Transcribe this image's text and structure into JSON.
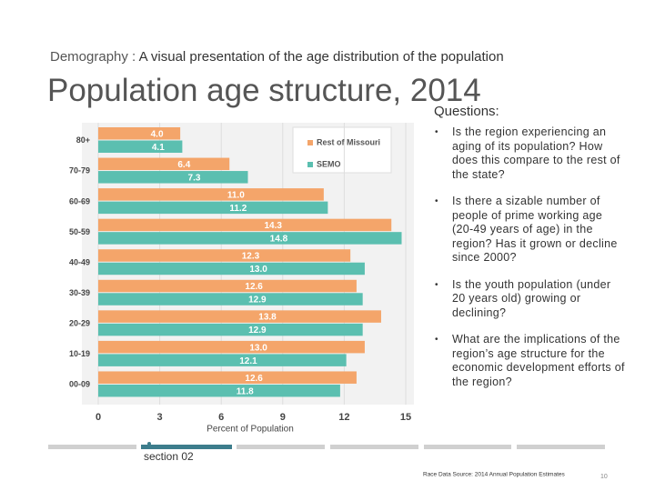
{
  "header": {
    "label": "Demography :",
    "subtitle": "A visual presentation of the age distribution of the population",
    "title": "Population age structure, 2014"
  },
  "questions": {
    "heading": "Questions:",
    "items": [
      "Is the region experiencing an aging of its population? How does this compare to the rest of the state?",
      "Is there a sizable number of people of prime working age (20-49 years of age) in the region? Has it grown or decline since 2000?",
      "Is the youth population (under 20 years old) growing or declining?",
      "What are the implications of the region’s age structure for the economic development efforts of the region?"
    ]
  },
  "footer": {
    "section": "section 02",
    "source": "Race Data Source: 2014 Annual Population Estimates",
    "page": "10"
  },
  "chart_data": {
    "type": "bar",
    "orientation": "horizontal",
    "x_label": "Percent of Population",
    "categories": [
      "80+",
      "70-79",
      "60-69",
      "50-59",
      "40-49",
      "30-39",
      "20-29",
      "10-19",
      "00-09"
    ],
    "series": [
      {
        "name": "Rest of Missouri",
        "color": "#f4a56a",
        "values": [
          4.0,
          6.4,
          11.0,
          14.3,
          12.3,
          12.6,
          13.8,
          13.0,
          12.6
        ],
        "value_labels": [
          "4.0",
          "6.4",
          "11.0",
          "14.3",
          "12.3",
          "12.6",
          "13.8",
          "13.0",
          "12.6"
        ]
      },
      {
        "name": "SEMO",
        "color": "#5bbfb0",
        "values": [
          4.1,
          7.3,
          11.2,
          14.8,
          13.0,
          12.9,
          12.9,
          12.1,
          11.8
        ],
        "value_labels": [
          "4.1",
          "7.3",
          "11.2",
          "14.8",
          "13.0",
          "12.9",
          "12.9",
          "12.1",
          "11.8"
        ]
      }
    ],
    "xlim": [
      0,
      15
    ],
    "xticks": [
      0,
      3,
      6,
      9,
      12,
      15
    ],
    "grid": true,
    "legend": "top-right"
  }
}
